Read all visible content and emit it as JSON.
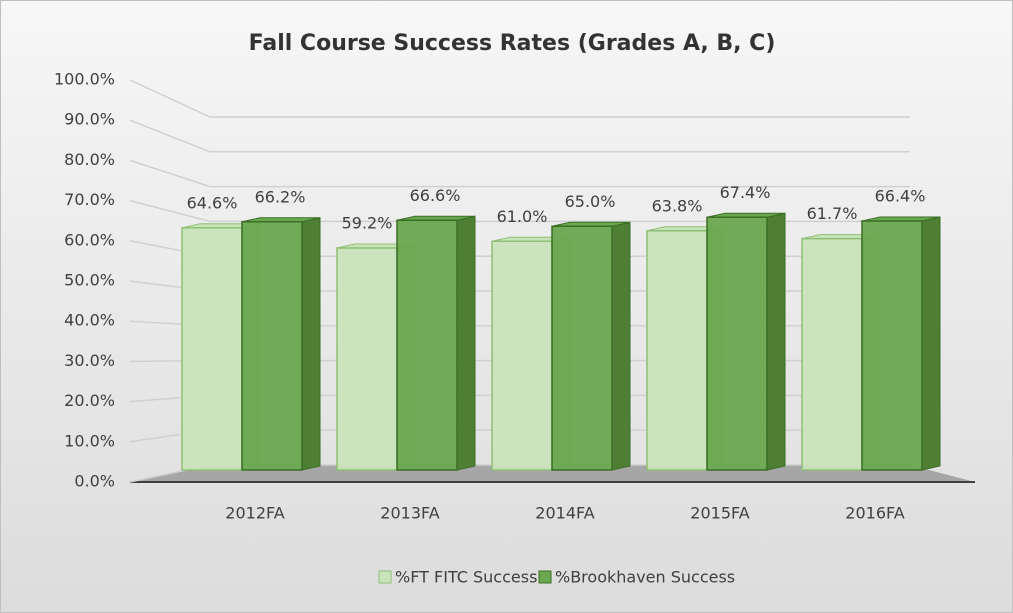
{
  "chart_data": {
    "type": "bar3d",
    "title": "Fall Course Success Rates (Grades A, B, C)",
    "categories": [
      "2012FA",
      "2013FA",
      "2014FA",
      "2015FA",
      "2016FA"
    ],
    "series": [
      {
        "name": "%FT FITC Success",
        "color": "#c9e4bb",
        "values": [
          64.6,
          59.2,
          61.0,
          63.8,
          61.7
        ],
        "value_labels": [
          "64.6%",
          "59.2%",
          "61.0%",
          "63.8%",
          "61.7%"
        ]
      },
      {
        "name": "%Brookhaven Success",
        "color": "#6aa84f",
        "values": [
          66.2,
          66.6,
          65.0,
          67.4,
          66.4
        ],
        "value_labels": [
          "66.2%",
          "66.6%",
          "65.0%",
          "67.4%",
          "66.4%"
        ]
      }
    ],
    "ylim": [
      0,
      100
    ],
    "yticks": [
      {
        "value": 0,
        "label": "0.0%"
      },
      {
        "value": 10,
        "label": "10.0%"
      },
      {
        "value": 20,
        "label": "20.0%"
      },
      {
        "value": 30,
        "label": "30.0%"
      },
      {
        "value": 40,
        "label": "40.0%"
      },
      {
        "value": 50,
        "label": "50.0%"
      },
      {
        "value": 60,
        "label": "60.0%"
      },
      {
        "value": 70,
        "label": "70.0%"
      },
      {
        "value": 80,
        "label": "80.0%"
      },
      {
        "value": 90,
        "label": "90.0%"
      },
      {
        "value": 100,
        "label": "100.0%"
      }
    ],
    "grid": true,
    "legend": "bottom"
  }
}
